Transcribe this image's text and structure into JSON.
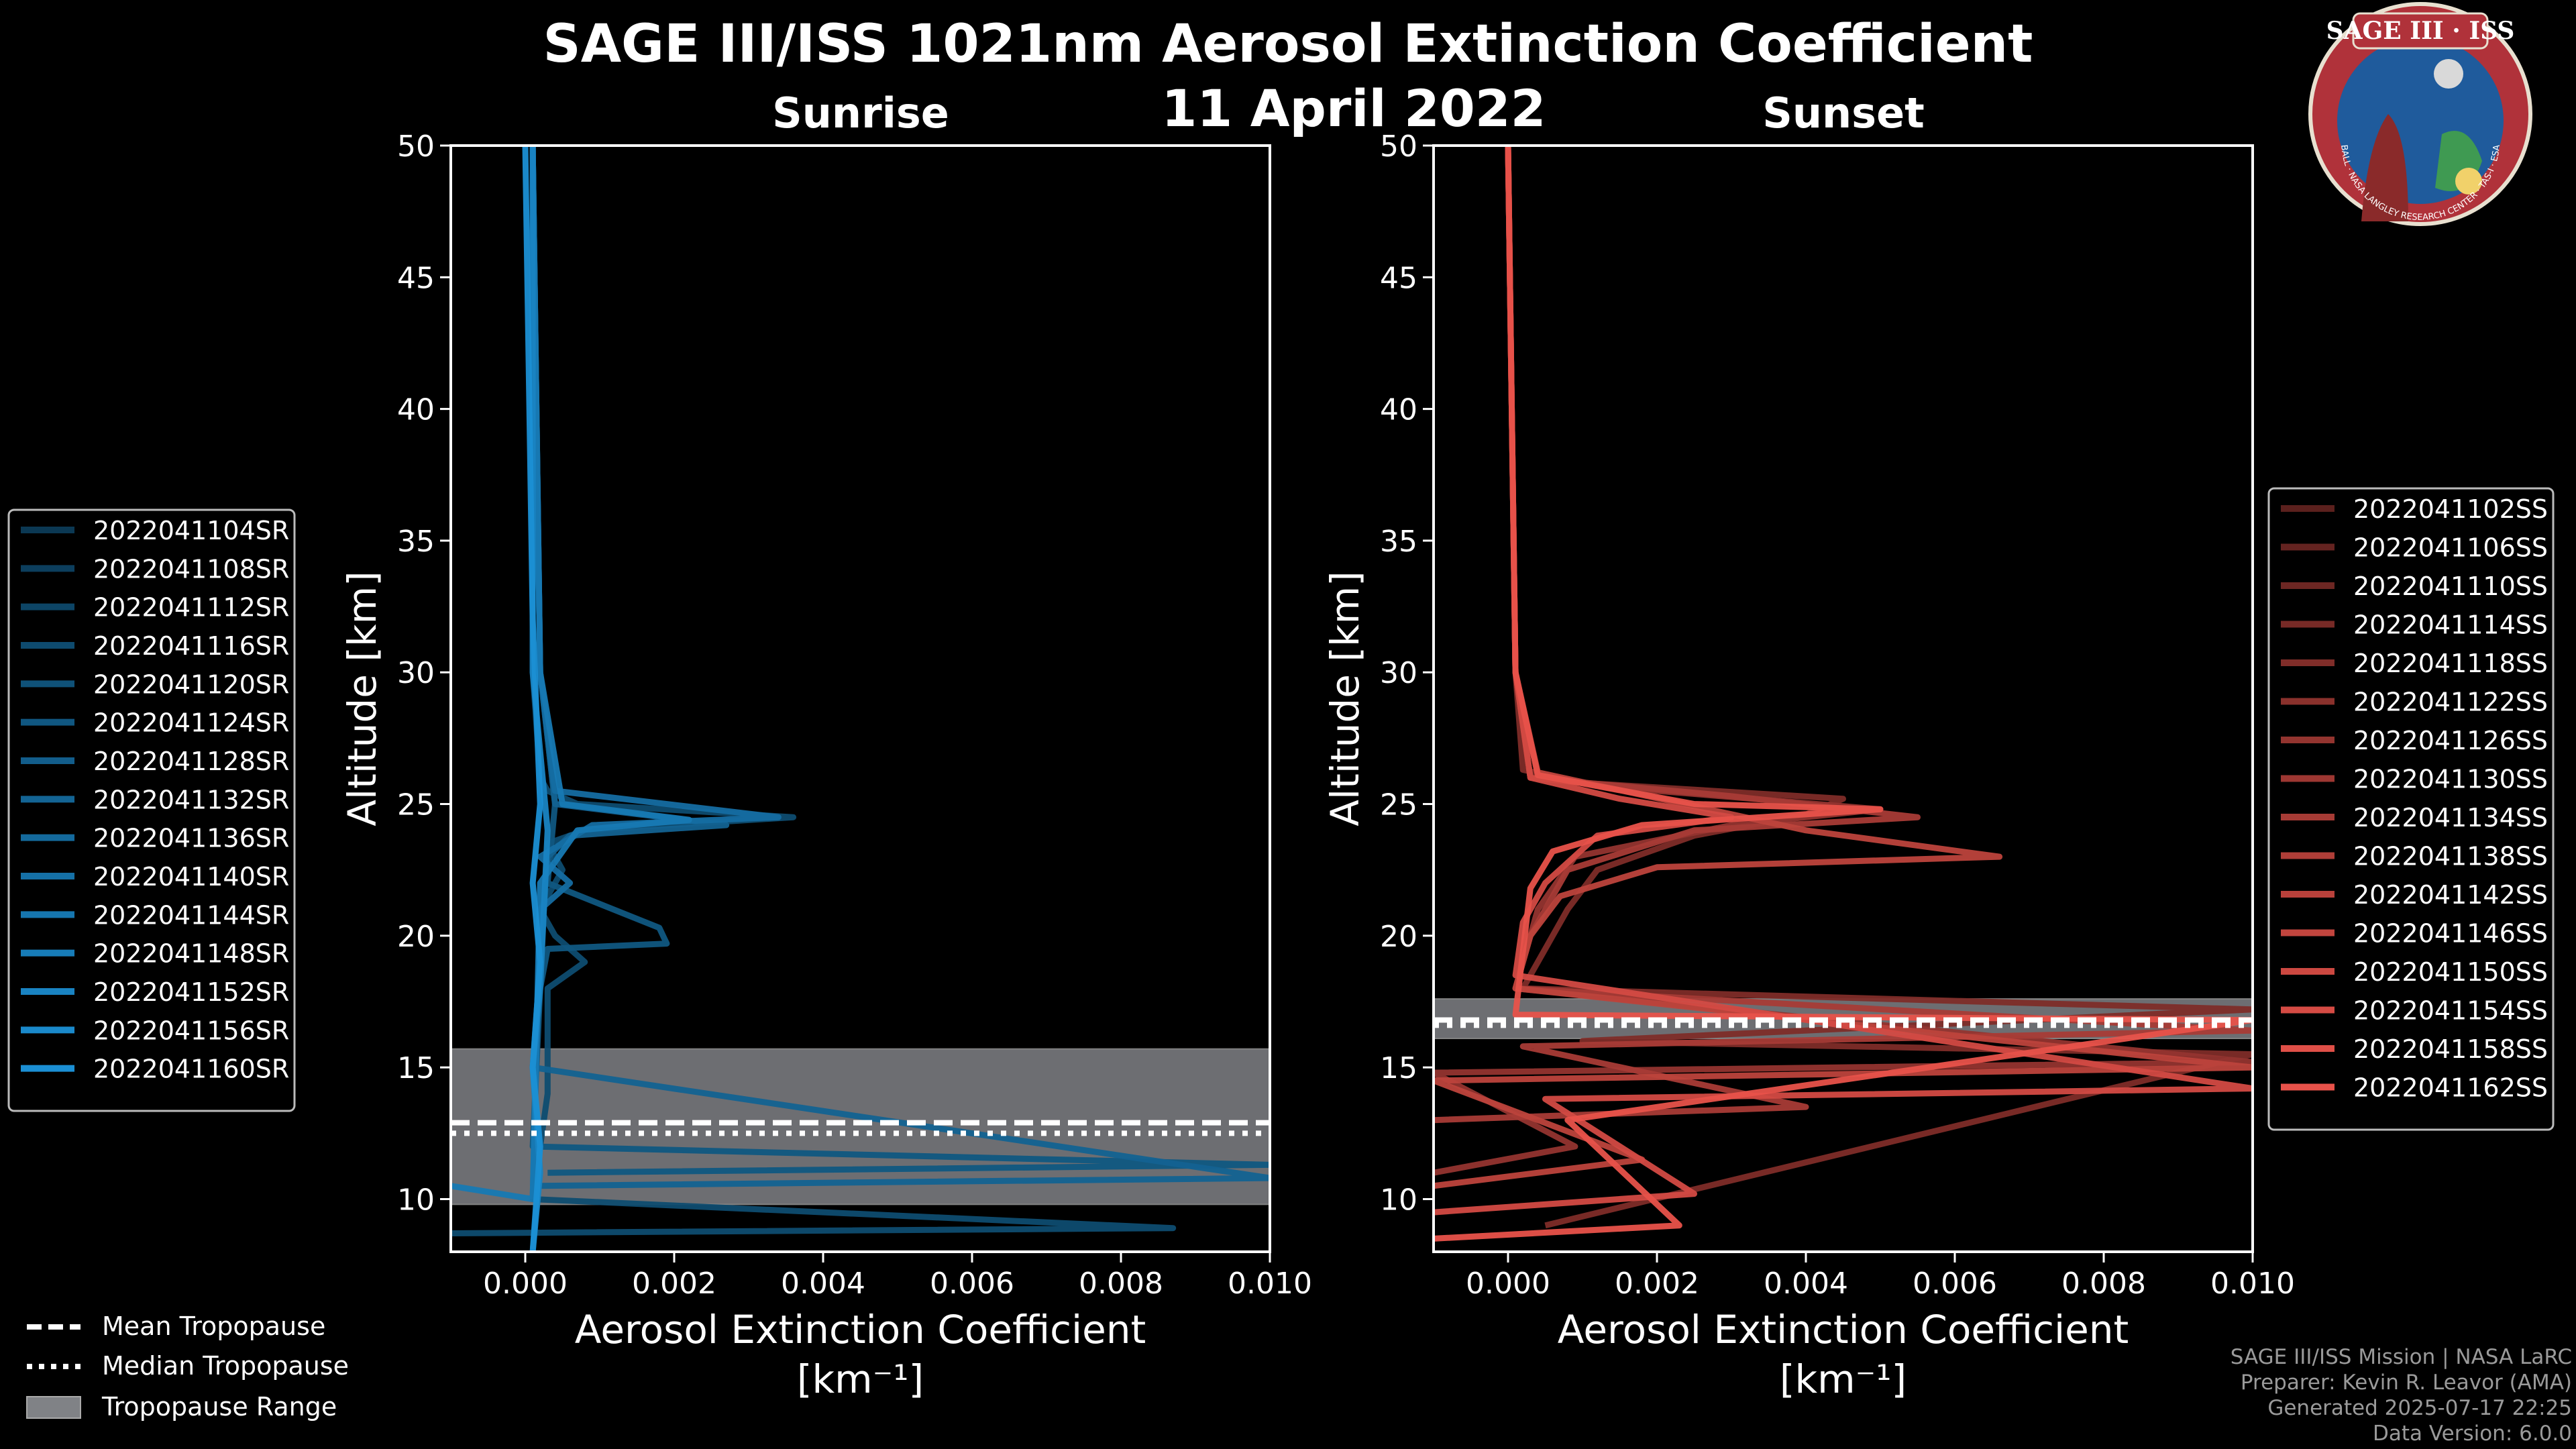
{
  "title": "SAGE III/ISS 1021nm Aerosol Extinction Coefficient",
  "date": "11 April 2022",
  "logo": {
    "text": "SAGE III · ISS",
    "ring_text": "BALL · NASA LANGLEY RESEARCH CENTER · TAS-I · ESA",
    "colors": {
      "ring": "#b0323a",
      "disc": "#1f5b9c"
    }
  },
  "credits": {
    "line1": "SAGE III/ISS Mission | NASA LaRC",
    "line2": "Preparer: Kevin R. Leavor (AMA)",
    "line3": "Generated 2025-07-17 22:25",
    "line4": "Data Version: 6.0.0"
  },
  "tropopause_legend": {
    "mean": "Mean Tropopause",
    "median": "Median Tropopause",
    "range": "Tropopause Range"
  },
  "colors": {
    "sunrise": "#1b8fd4",
    "sunset": "#e8524a",
    "range": "#808286"
  },
  "chart_data": [
    {
      "type": "line",
      "title": "Sunrise",
      "xlabel": "Aerosol Extinction Coefficient",
      "xunit": "[km⁻¹]",
      "ylabel": "Altitude [km]",
      "xlim": [
        -0.001,
        0.01
      ],
      "ylim": [
        8,
        50
      ],
      "xticks": [
        0.0,
        0.002,
        0.004,
        0.006,
        0.008,
        0.01
      ],
      "xtick_labels": [
        "0.000",
        "0.002",
        "0.004",
        "0.006",
        "0.008",
        "0.010"
      ],
      "yticks": [
        10,
        15,
        20,
        25,
        30,
        35,
        40,
        45,
        50
      ],
      "tropopause": {
        "mean": 12.9,
        "median": 12.5,
        "range": [
          9.8,
          15.7
        ]
      },
      "legend": [
        "2022041104SR",
        "2022041108SR",
        "2022041112SR",
        "2022041116SR",
        "2022041120SR",
        "2022041124SR",
        "2022041128SR",
        "2022041132SR",
        "2022041136SR",
        "2022041140SR",
        "2022041144SR",
        "2022041148SR",
        "2022041152SR",
        "2022041156SR",
        "2022041160SR"
      ],
      "series": [
        {
          "name": "2022041104SR",
          "x": [
            0.0001,
            0.0001,
            0.0002,
            0.0003,
            0.0007,
            0.0036,
            0.0008,
            0.0003,
            0.0005,
            0.0002,
            0.0004,
            0.0008,
            0.0003,
            0.0003,
            0.0001,
            0.0087,
            -0.001
          ],
          "y": [
            50,
            30,
            26,
            25.5,
            25,
            24.5,
            24,
            23.5,
            22.5,
            21,
            20,
            19,
            18,
            14,
            10,
            8.9,
            8.7
          ]
        },
        {
          "name": "2022041108SR",
          "x": [
            0.0001,
            0.0002,
            0.0004,
            0.0003,
            0.0018,
            0.0019,
            0.0003,
            0.0002,
            0.0001,
            0.01,
            0.0003
          ],
          "y": [
            50,
            30,
            25,
            22,
            20.3,
            19.7,
            19.5,
            18,
            12,
            11.3,
            11
          ]
        },
        {
          "name": "2022041116SR",
          "x": [
            0.0001,
            0.0002,
            0.0004,
            0.0027,
            0.0006,
            0.0003,
            0.0001,
            0.01,
            0.0002
          ],
          "y": [
            50,
            30,
            25,
            24.2,
            23.8,
            23,
            15,
            10.8,
            10.5
          ]
        },
        {
          "name": "2022041124SR",
          "x": [
            0.0001,
            0.0002,
            0.0004,
            0.0034,
            0.0009,
            0.0002,
            0.0006,
            0.0002,
            0.0001
          ],
          "y": [
            50,
            30,
            25.5,
            24.5,
            24.2,
            23,
            22,
            21,
            10
          ]
        },
        {
          "name": "2022041132SR",
          "x": [
            0.0001,
            0.0002,
            0.0005,
            0.0022,
            0.0007,
            0.0002,
            0.0001,
            -0.001
          ],
          "y": [
            50,
            30,
            25,
            24.4,
            24,
            22,
            10,
            10.5
          ]
        },
        {
          "name": "2022041144SR",
          "x": [
            0.0001,
            0.0001,
            0.0003,
            0.0002,
            0.0001,
            0.0002,
            0.0001
          ],
          "y": [
            50,
            30,
            24,
            18,
            15,
            11,
            8
          ]
        },
        {
          "name": "2022041160SR",
          "x": [
            0.0,
            0.0001,
            0.0002,
            0.0001,
            0.0002,
            0.0001,
            0.0002,
            0.0001
          ],
          "y": [
            50,
            32,
            25,
            22,
            19,
            15,
            12,
            8
          ]
        }
      ]
    },
    {
      "type": "line",
      "title": "Sunset",
      "xlabel": "Aerosol Extinction Coefficient",
      "xunit": "[km⁻¹]",
      "ylabel": "Altitude [km]",
      "xlim": [
        -0.001,
        0.01
      ],
      "ylim": [
        8,
        50
      ],
      "xticks": [
        0.0,
        0.002,
        0.004,
        0.006,
        0.008,
        0.01
      ],
      "xtick_labels": [
        "0.000",
        "0.002",
        "0.004",
        "0.006",
        "0.008",
        "0.010"
      ],
      "yticks": [
        10,
        15,
        20,
        25,
        30,
        35,
        40,
        45,
        50
      ],
      "tropopause": {
        "mean": 16.8,
        "median": 16.6,
        "range": [
          16.1,
          17.6
        ]
      },
      "legend": [
        "2022041102SS",
        "2022041106SS",
        "2022041110SS",
        "2022041114SS",
        "2022041118SS",
        "2022041122SS",
        "2022041126SS",
        "2022041130SS",
        "2022041134SS",
        "2022041138SS",
        "2022041142SS",
        "2022041146SS",
        "2022041150SS",
        "2022041154SS",
        "2022041158SS",
        "2022041162SS"
      ],
      "series": [
        {
          "name": "2022041102SS",
          "x": [
            0.0,
            0.0001,
            0.0002,
            0.001,
            0.0045,
            0.004,
            0.0025,
            0.0012,
            0.0008,
            0.0005,
            0.0002,
            0.01,
            0.001,
            0.01,
            0.0005
          ],
          "y": [
            50,
            30,
            26.3,
            25.8,
            25.2,
            24.6,
            23.8,
            22.5,
            21,
            19.5,
            18,
            17.2,
            16,
            15.5,
            9
          ]
        },
        {
          "name": "2022041114SS",
          "x": [
            0.0,
            0.0001,
            0.0003,
            0.002,
            0.005,
            0.003,
            0.0009,
            0.0004,
            0.0001,
            0.01,
            -0.001,
            0.0009,
            -0.001
          ],
          "y": [
            50,
            30,
            26,
            25.5,
            24.8,
            24.2,
            23,
            21,
            18,
            15.2,
            14.8,
            12,
            11
          ]
        },
        {
          "name": "2022041126SS",
          "x": [
            0.0,
            0.0001,
            0.0003,
            0.003,
            0.0055,
            0.0025,
            0.0008,
            0.0003,
            0.0001,
            0.01,
            0.0002,
            0.004,
            -0.001
          ],
          "y": [
            50,
            30,
            26,
            25.3,
            24.5,
            24,
            22.5,
            20,
            18,
            16.4,
            15.8,
            13.5,
            13
          ]
        },
        {
          "name": "2022041138SS",
          "x": [
            0.0,
            0.0001,
            0.0004,
            0.004,
            0.0066,
            0.002,
            0.0007,
            0.0003,
            0.0001,
            0.01,
            -0.001,
            0.0018,
            -0.001
          ],
          "y": [
            50,
            30,
            26.2,
            24,
            23,
            22.6,
            21.5,
            20,
            18,
            15,
            14.5,
            11.5,
            10.5
          ]
        },
        {
          "name": "2022041150SS",
          "x": [
            0.0,
            0.0001,
            0.0003,
            0.0015,
            0.003,
            0.0012,
            0.0005,
            0.0002,
            0.0001,
            0.01,
            0.0005,
            0.0025,
            -0.001
          ],
          "y": [
            50,
            30,
            26,
            25.2,
            24.5,
            23.8,
            22,
            20.5,
            18.5,
            14.2,
            13.8,
            10.2,
            9.5
          ]
        },
        {
          "name": "2022041162SS",
          "x": [
            0.0,
            0.0001,
            0.0004,
            0.0025,
            0.005,
            0.0018,
            0.0006,
            0.0003,
            0.0001,
            0.01,
            0.0008,
            0.0023,
            -0.001
          ],
          "y": [
            50,
            30,
            26.1,
            25,
            24.8,
            24.2,
            23.2,
            21.8,
            17,
            16.8,
            13,
            9,
            8.5
          ]
        }
      ]
    }
  ]
}
